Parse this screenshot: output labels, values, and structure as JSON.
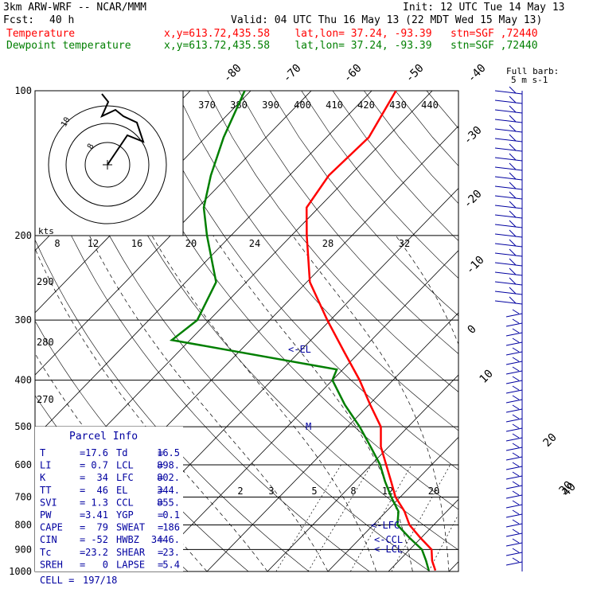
{
  "header": {
    "model_line": "3km ARW-WRF -- NCAR/MMM",
    "init_line": "Init: 12 UTC Tue 14 May 13",
    "fcst_label": "Fcst:",
    "fcst_value": "40 h",
    "valid_line": "Valid: 04 UTC Thu 16 May 13 (22 MDT Wed 15 May 13)",
    "temp_label": "Temperature",
    "dew_label": "Dewpoint temperature",
    "point_info": "x,y=613.72,435.58    lat,lon= 37.24, -93.39   stn=SGF ,72440",
    "temp_color": "#ff0000",
    "dew_color": "#007f00"
  },
  "chart_data": {
    "type": "line",
    "title": "",
    "pressure_ticks": [
      "100",
      "200",
      "300",
      "400",
      "500",
      "600",
      "700",
      "800",
      "900",
      "1000"
    ],
    "pressure_values": [
      100,
      200,
      300,
      400,
      500,
      600,
      700,
      800,
      900,
      1000
    ],
    "isotherm_labels_top": [
      "-80",
      "-70",
      "-60",
      "-50",
      "-40"
    ],
    "isotherm_values_top": [
      -80,
      -70,
      -60,
      -50,
      -40
    ],
    "isotherm_labels_right": [
      "-30",
      "-20",
      "-10",
      "0",
      "10",
      "20",
      "30",
      "40"
    ],
    "isotherm_values_right": [
      -30,
      -20,
      -10,
      0,
      10,
      20,
      30,
      40
    ],
    "theta_labels": [
      "370",
      "380",
      "390",
      "400",
      "410",
      "420",
      "430",
      "440"
    ],
    "theta_side_labels": [
      "290",
      "280",
      "270"
    ],
    "mixing_ratio_labels": [
      "2",
      "3",
      "5",
      "8",
      "12",
      "20"
    ],
    "hodograph_speed_unit": "kts",
    "hodograph_speed_labels": [
      "8",
      "12",
      "16",
      "20",
      "24",
      "28",
      "32"
    ],
    "hodograph_height_labels": [
      "8",
      "10"
    ],
    "full_barb_label": "Full barb:",
    "full_barb_value": "5 m s-1",
    "level_markers": [
      "<-EL",
      "M",
      "<-LFC",
      "<-CCL",
      "<-LCL"
    ],
    "series": [
      {
        "name": "Temperature",
        "color": "#ff0000",
        "points": [
          {
            "p": 995,
            "t": 17.6
          },
          {
            "p": 950,
            "t": 15.5
          },
          {
            "p": 900,
            "t": 13.6
          },
          {
            "p": 850,
            "t": 9.8
          },
          {
            "p": 800,
            "t": 6.0
          },
          {
            "p": 750,
            "t": 3.0
          },
          {
            "p": 700,
            "t": -0.8
          },
          {
            "p": 650,
            "t": -4.0
          },
          {
            "p": 600,
            "t": -7.5
          },
          {
            "p": 550,
            "t": -11.3
          },
          {
            "p": 500,
            "t": -14.5
          },
          {
            "p": 450,
            "t": -19.8
          },
          {
            "p": 400,
            "t": -25.5
          },
          {
            "p": 350,
            "t": -32.5
          },
          {
            "p": 300,
            "t": -40.5
          },
          {
            "p": 250,
            "t": -49.5
          },
          {
            "p": 200,
            "t": -57.5
          },
          {
            "p": 175,
            "t": -62.0
          },
          {
            "p": 150,
            "t": -63.5
          },
          {
            "p": 125,
            "t": -63.0
          },
          {
            "p": 100,
            "t": -66.0
          }
        ]
      },
      {
        "name": "Dewpoint temperature",
        "color": "#007f00",
        "points": [
          {
            "p": 995,
            "t": 16.5
          },
          {
            "p": 950,
            "t": 14.5
          },
          {
            "p": 900,
            "t": 12.0
          },
          {
            "p": 850,
            "t": 8.0
          },
          {
            "p": 800,
            "t": 4.0
          },
          {
            "p": 750,
            "t": 2.0
          },
          {
            "p": 700,
            "t": -1.5
          },
          {
            "p": 650,
            "t": -5.0
          },
          {
            "p": 600,
            "t": -8.5
          },
          {
            "p": 550,
            "t": -13.0
          },
          {
            "p": 500,
            "t": -18.0
          },
          {
            "p": 450,
            "t": -24.0
          },
          {
            "p": 400,
            "t": -30.0
          },
          {
            "p": 380,
            "t": -31.0
          },
          {
            "p": 330,
            "t": -63.0
          },
          {
            "p": 300,
            "t": -62.0
          },
          {
            "p": 250,
            "t": -65.0
          },
          {
            "p": 200,
            "t": -74.0
          },
          {
            "p": 175,
            "t": -79.0
          },
          {
            "p": 150,
            "t": -83.0
          },
          {
            "p": 125,
            "t": -87.0
          },
          {
            "p": 100,
            "t": -91.0
          }
        ]
      }
    ]
  },
  "parcel_info": {
    "title": "Parcel Info",
    "rows": [
      {
        "l1": "T",
        "v1": "17.6",
        "l2": "Td",
        "v2": "16.5"
      },
      {
        "l1": "LI",
        "v1": "0.7",
        "l2": "LCL",
        "v2": "898."
      },
      {
        "l1": "K",
        "v1": "34",
        "l2": "LFC",
        "v2": "802."
      },
      {
        "l1": "TT",
        "v1": "46",
        "l2": "EL",
        "v2": "344."
      },
      {
        "l1": "SVI",
        "v1": "1.3",
        "l2": "CCL",
        "v2": "855."
      },
      {
        "l1": "PW",
        "v1": "3.41",
        "l2": "YGP",
        "v2": "0.1"
      },
      {
        "l1": "CAPE",
        "v1": "79",
        "l2": "SWEAT",
        "v2": "186"
      },
      {
        "l1": "CIN",
        "v1": "-52",
        "l2": "HWBZ",
        "v2": "3446."
      },
      {
        "l1": "Tc",
        "v1": "23.2",
        "l2": "SHEAR",
        "v2": "23."
      },
      {
        "l1": "SREH",
        "v1": "0",
        "l2": "LAPSE",
        "v2": "5.4"
      }
    ],
    "cell_label": "CELL =",
    "cell_value": "197/18"
  }
}
